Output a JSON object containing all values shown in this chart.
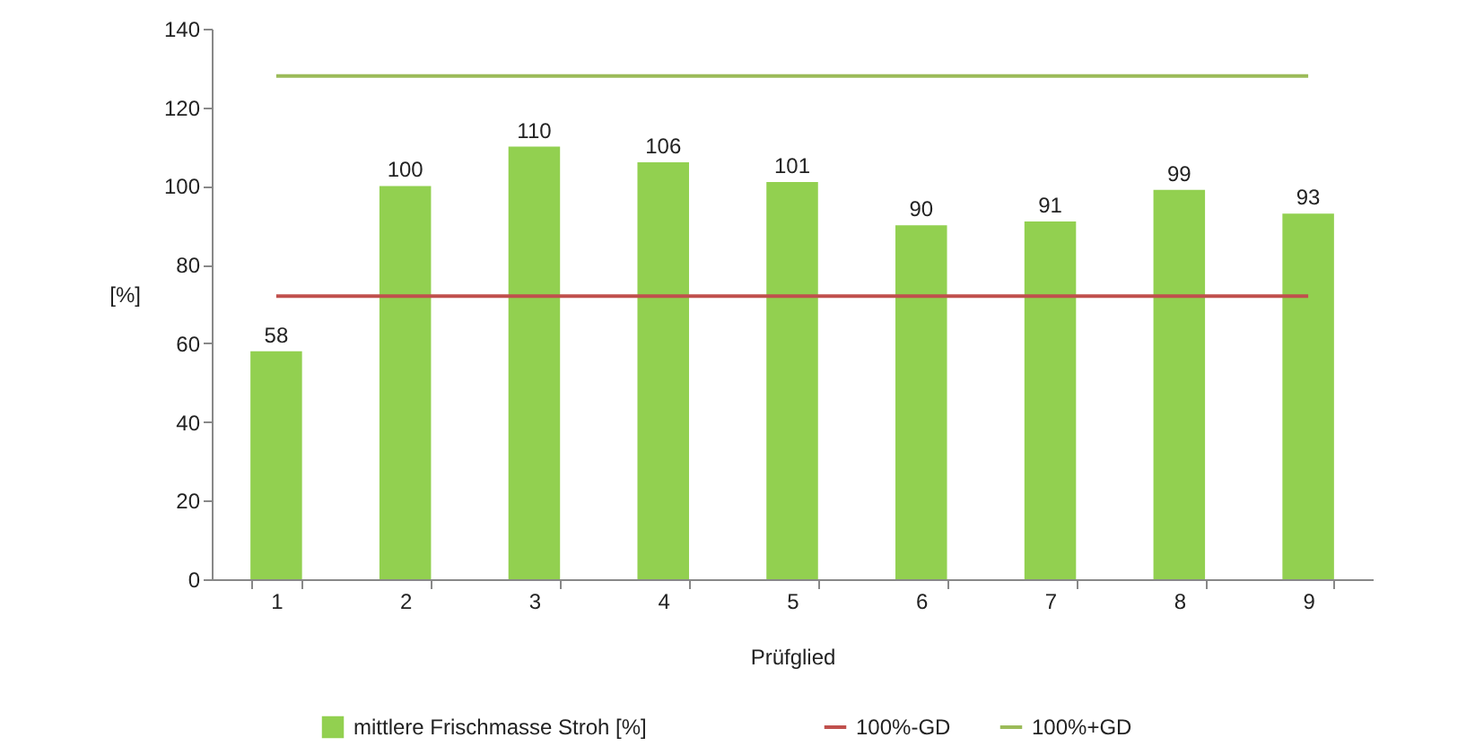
{
  "chart_data": {
    "type": "bar",
    "xlabel": "Prüfglied",
    "ylabel": "[%]",
    "categories": [
      "1",
      "2",
      "3",
      "4",
      "5",
      "6",
      "7",
      "8",
      "9"
    ],
    "series": [
      {
        "name": "mittlere Frischmasse Stroh [%]",
        "color": "#92d050",
        "values": [
          58,
          100,
          110,
          106,
          101,
          90,
          91,
          99,
          93
        ],
        "value_labels": [
          "58",
          "100",
          "110",
          "106",
          "101",
          "90",
          "91",
          "99",
          "93"
        ]
      },
      {
        "name": "100%-GD",
        "type": "line",
        "color": "#c0504d",
        "values": [
          72,
          72,
          72,
          72,
          72,
          72,
          72,
          72,
          72
        ]
      },
      {
        "name": "100%+GD",
        "type": "line",
        "color": "#9bbb59",
        "values": [
          128,
          128,
          128,
          128,
          128,
          128,
          128,
          128,
          128
        ]
      }
    ],
    "ylim": [
      0,
      140
    ],
    "yticks": [
      0,
      20,
      40,
      60,
      80,
      100,
      120,
      140
    ],
    "grid": false,
    "legend": "bottom",
    "marker": "none",
    "line_style": "solid"
  }
}
